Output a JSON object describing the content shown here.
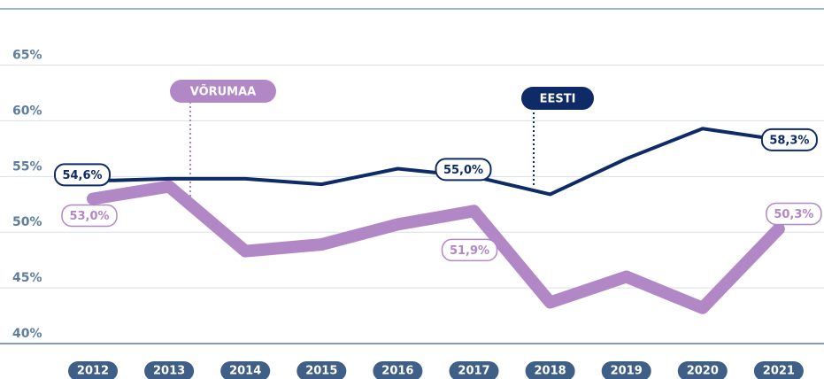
{
  "chart_data": {
    "type": "line",
    "categories": [
      "2012",
      "2013",
      "2014",
      "2015",
      "2016",
      "2017",
      "2018",
      "2019",
      "2020",
      "2021"
    ],
    "series": [
      {
        "name": "EESTI",
        "color": "#0e2a67",
        "values": [
          54.6,
          54.8,
          54.8,
          54.3,
          55.7,
          55.0,
          53.4,
          56.6,
          59.3,
          58.3
        ],
        "value_labels": [
          "54,6%",
          null,
          null,
          null,
          null,
          "55,0%",
          null,
          null,
          null,
          "58,3%"
        ]
      },
      {
        "name": "VÕRUMAA",
        "color": "#b287c6",
        "values": [
          53.0,
          54.1,
          48.3,
          48.9,
          50.7,
          51.9,
          43.7,
          46.0,
          43.2,
          50.3
        ],
        "value_labels": [
          "53,0%",
          null,
          null,
          null,
          null,
          "51,9%",
          null,
          null,
          null,
          "50,3%"
        ]
      }
    ],
    "ylim": [
      40,
      68.7
    ],
    "yticks": [
      {
        "value": 40,
        "label": "40%"
      },
      {
        "value": 45,
        "label": "45%"
      },
      {
        "value": 50,
        "label": "50%"
      },
      {
        "value": 55,
        "label": "55%"
      },
      {
        "value": 60,
        "label": "60%"
      },
      {
        "value": 65,
        "label": "65%"
      }
    ],
    "grid": true
  }
}
